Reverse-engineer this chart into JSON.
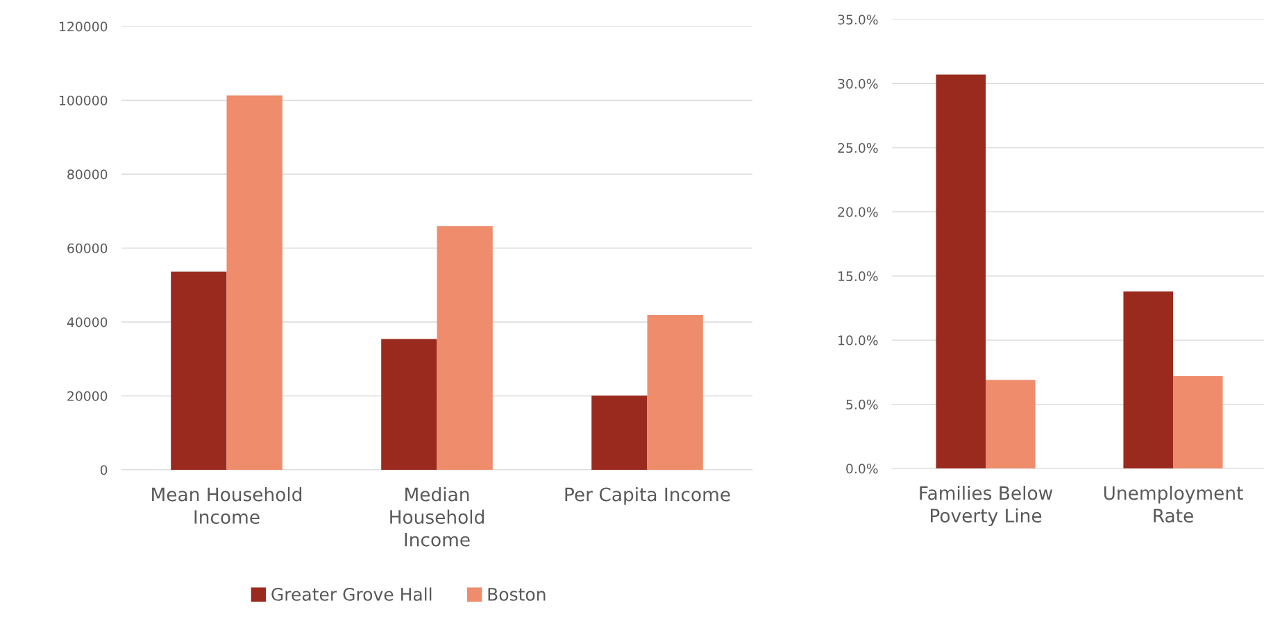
{
  "chart_data": [
    {
      "type": "bar",
      "categories": [
        "Mean Household\nIncome",
        "Median\nHousehold\nIncome",
        "Per Capita Income"
      ],
      "series": [
        {
          "name": "Greater Grove Hall",
          "color": "#9b2a1e",
          "values": [
            53600,
            35400,
            20100
          ]
        },
        {
          "name": "Boston",
          "color": "#ee8c6c",
          "values": [
            101300,
            65900,
            41900
          ]
        }
      ],
      "ylim": [
        0,
        120000
      ],
      "yticks": [
        0,
        20000,
        40000,
        60000,
        80000,
        100000,
        120000
      ],
      "grid": "y",
      "legend": "bottom"
    },
    {
      "type": "bar",
      "categories": [
        "Families Below\nPoverty Line",
        "Unemployment\nRate"
      ],
      "series": [
        {
          "color": "#9b2a1e",
          "values": [
            30.7,
            13.8
          ]
        },
        {
          "color": "#ee8c6c",
          "values": [
            6.9,
            7.2
          ]
        }
      ],
      "ylim": [
        0,
        35
      ],
      "yticks": [
        {
          "value": 0,
          "label": "0.0%"
        },
        {
          "value": 5,
          "label": "5.0%"
        },
        {
          "value": 10,
          "label": "10.0%"
        },
        {
          "value": 15,
          "label": "15.0%"
        },
        {
          "value": 20,
          "label": "20.0%"
        },
        {
          "value": 25,
          "label": "25.0%"
        },
        {
          "value": 30,
          "label": "30.0%"
        },
        {
          "value": 35,
          "label": "35.0%"
        }
      ],
      "grid": "y"
    }
  ]
}
